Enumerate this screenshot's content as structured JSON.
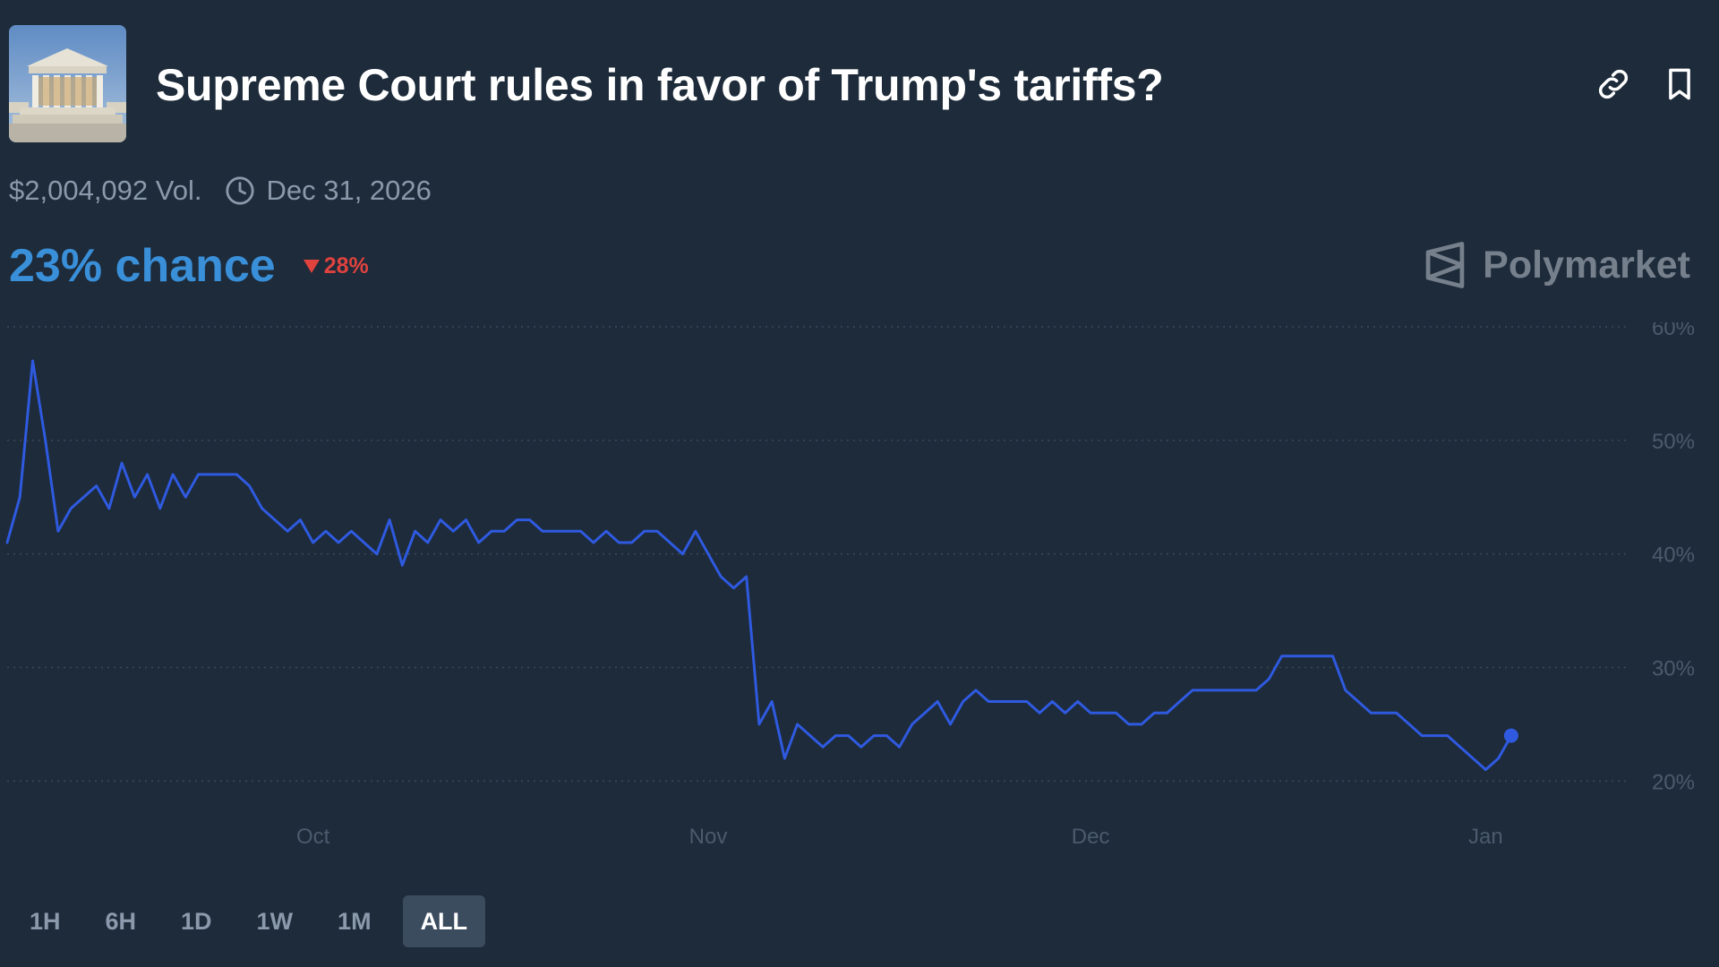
{
  "header": {
    "title": "Supreme Court rules in favor of Trump's tariffs?",
    "image_icon": "supreme-court-building",
    "link_icon": "link-icon",
    "bookmark_icon": "bookmark-icon"
  },
  "meta": {
    "volume": "$2,004,092 Vol.",
    "end_date": "Dec 31, 2026",
    "clock_icon": "clock-icon"
  },
  "odds": {
    "chance": "23% chance",
    "change": "28%",
    "change_direction": "down",
    "chance_color": "#3a8fd9",
    "change_color": "#e0423e"
  },
  "brand": {
    "name": "Polymarket",
    "icon": "polymarket-logo"
  },
  "range_buttons": [
    "1H",
    "6H",
    "1D",
    "1W",
    "1M",
    "ALL"
  ],
  "active_range": "ALL",
  "chart_data": {
    "type": "line",
    "title": "",
    "xlabel": "",
    "ylabel": "",
    "x_tick_labels": [
      "Oct",
      "Nov",
      "Dec",
      "Jan"
    ],
    "y_tick_labels": [
      "60%",
      "50%",
      "40%",
      "30%",
      "20%"
    ],
    "y_ticks": [
      60,
      50,
      40,
      30,
      20
    ],
    "ylim": [
      19,
      60
    ],
    "x_axis": "date",
    "x_range": [
      "Sep 7",
      "Jan 12"
    ],
    "x_tick_dates": [
      "Oct 1",
      "Nov 1",
      "Dec 1",
      "Jan 1"
    ],
    "grid": true,
    "line_color": "#2f5ae0",
    "series": [
      {
        "values": [
          [
            "Sep 7",
            41
          ],
          [
            "Sep 8",
            45
          ],
          [
            "Sep 9",
            57
          ],
          [
            "Sep 10",
            50
          ],
          [
            "Sep 11",
            42
          ],
          [
            "Sep 12",
            44
          ],
          [
            "Sep 13",
            45
          ],
          [
            "Sep 14",
            46
          ],
          [
            "Sep 15",
            44
          ],
          [
            "Sep 16",
            48
          ],
          [
            "Sep 17",
            45
          ],
          [
            "Sep 18",
            47
          ],
          [
            "Sep 19",
            44
          ],
          [
            "Sep 20",
            47
          ],
          [
            "Sep 21",
            45
          ],
          [
            "Sep 22",
            47
          ],
          [
            "Sep 23",
            47
          ],
          [
            "Sep 24",
            47
          ],
          [
            "Sep 25",
            47
          ],
          [
            "Sep 26",
            46
          ],
          [
            "Sep 27",
            44
          ],
          [
            "Sep 28",
            43
          ],
          [
            "Sep 29",
            42
          ],
          [
            "Sep 30",
            43
          ],
          [
            "Oct 1",
            41
          ],
          [
            "Oct 2",
            42
          ],
          [
            "Oct 3",
            41
          ],
          [
            "Oct 4",
            42
          ],
          [
            "Oct 5",
            41
          ],
          [
            "Oct 6",
            40
          ],
          [
            "Oct 7",
            43
          ],
          [
            "Oct 8",
            39
          ],
          [
            "Oct 9",
            42
          ],
          [
            "Oct 10",
            41
          ],
          [
            "Oct 11",
            43
          ],
          [
            "Oct 12",
            42
          ],
          [
            "Oct 13",
            43
          ],
          [
            "Oct 14",
            41
          ],
          [
            "Oct 15",
            42
          ],
          [
            "Oct 16",
            42
          ],
          [
            "Oct 17",
            43
          ],
          [
            "Oct 18",
            43
          ],
          [
            "Oct 19",
            42
          ],
          [
            "Oct 20",
            42
          ],
          [
            "Oct 21",
            42
          ],
          [
            "Oct 22",
            42
          ],
          [
            "Oct 23",
            41
          ],
          [
            "Oct 24",
            42
          ],
          [
            "Oct 25",
            41
          ],
          [
            "Oct 26",
            41
          ],
          [
            "Oct 27",
            42
          ],
          [
            "Oct 28",
            42
          ],
          [
            "Oct 29",
            41
          ],
          [
            "Oct 30",
            40
          ],
          [
            "Oct 31",
            42
          ],
          [
            "Nov 1",
            40
          ],
          [
            "Nov 2",
            38
          ],
          [
            "Nov 3",
            37
          ],
          [
            "Nov 4",
            38
          ],
          [
            "Nov 5",
            25
          ],
          [
            "Nov 6",
            27
          ],
          [
            "Nov 7",
            22
          ],
          [
            "Nov 8",
            25
          ],
          [
            "Nov 9",
            24
          ],
          [
            "Nov 10",
            23
          ],
          [
            "Nov 11",
            24
          ],
          [
            "Nov 12",
            24
          ],
          [
            "Nov 13",
            23
          ],
          [
            "Nov 14",
            24
          ],
          [
            "Nov 15",
            24
          ],
          [
            "Nov 16",
            23
          ],
          [
            "Nov 17",
            25
          ],
          [
            "Nov 18",
            26
          ],
          [
            "Nov 19",
            27
          ],
          [
            "Nov 20",
            25
          ],
          [
            "Nov 21",
            27
          ],
          [
            "Nov 22",
            28
          ],
          [
            "Nov 23",
            27
          ],
          [
            "Nov 24",
            27
          ],
          [
            "Nov 25",
            27
          ],
          [
            "Nov 26",
            27
          ],
          [
            "Nov 27",
            26
          ],
          [
            "Nov 28",
            27
          ],
          [
            "Nov 29",
            26
          ],
          [
            "Nov 30",
            27
          ],
          [
            "Dec 1",
            26
          ],
          [
            "Dec 2",
            26
          ],
          [
            "Dec 3",
            26
          ],
          [
            "Dec 4",
            25
          ],
          [
            "Dec 5",
            25
          ],
          [
            "Dec 6",
            26
          ],
          [
            "Dec 7",
            26
          ],
          [
            "Dec 8",
            27
          ],
          [
            "Dec 9",
            28
          ],
          [
            "Dec 10",
            28
          ],
          [
            "Dec 11",
            28
          ],
          [
            "Dec 12",
            28
          ],
          [
            "Dec 13",
            28
          ],
          [
            "Dec 14",
            28
          ],
          [
            "Dec 15",
            29
          ],
          [
            "Dec 16",
            31
          ],
          [
            "Dec 17",
            31
          ],
          [
            "Dec 18",
            31
          ],
          [
            "Dec 19",
            31
          ],
          [
            "Dec 20",
            31
          ],
          [
            "Dec 21",
            28
          ],
          [
            "Dec 22",
            27
          ],
          [
            "Dec 23",
            26
          ],
          [
            "Dec 24",
            26
          ],
          [
            "Dec 25",
            26
          ],
          [
            "Dec 26",
            25
          ],
          [
            "Dec 27",
            24
          ],
          [
            "Dec 28",
            24
          ],
          [
            "Dec 29",
            24
          ],
          [
            "Dec 30",
            23
          ],
          [
            "Dec 31",
            22
          ],
          [
            "Jan 1",
            21
          ],
          [
            "Jan 2",
            22
          ],
          [
            "Jan 3",
            24
          ]
        ]
      }
    ]
  }
}
